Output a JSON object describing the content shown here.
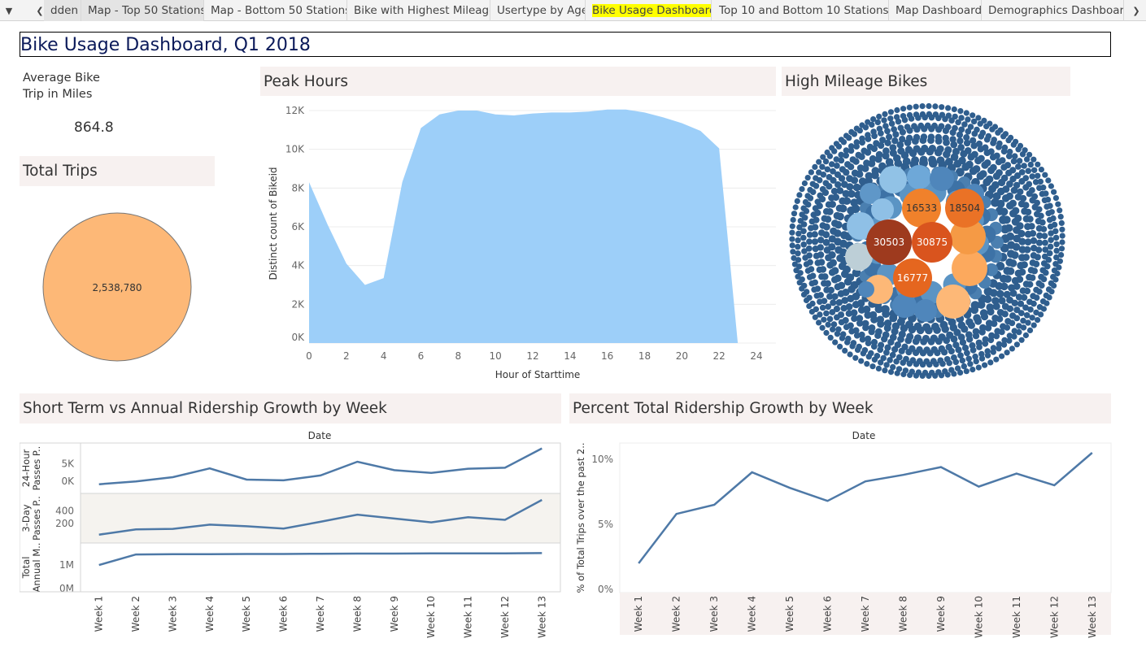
{
  "tabbar": {
    "tabs": [
      {
        "label": "dden",
        "active": false
      },
      {
        "label": "Map - Top 50 Stations",
        "active": false
      },
      {
        "label": "Map - Bottom 50 Stations",
        "active": false
      },
      {
        "label": "Bike with Highest Mileage",
        "active": false
      },
      {
        "label": "Usertype by Age",
        "active": false
      },
      {
        "label": "Bike Usage Dashboard",
        "active": true
      },
      {
        "label": "Top 10 and Bottom 10 Stations...",
        "active": false
      },
      {
        "label": "Map Dashboard",
        "active": false
      },
      {
        "label": "Demographics Dashboard",
        "active": false
      }
    ],
    "highlight_color": "#ffff00"
  },
  "dashboard": {
    "title": "Bike Usage Dashboard, Q1 2018"
  },
  "avg_trip": {
    "label": "Average Bike Trip in Miles",
    "label_line1": "Average Bike",
    "label_line2": "Trip in Miles",
    "value": "864.8"
  },
  "total_trips": {
    "title": "Total Trips",
    "value": "2,538,780",
    "color": "#fdb877"
  },
  "peak_hours": {
    "title": "Peak Hours",
    "color": "#9dcff9"
  },
  "high_mileage": {
    "title": "High Mileage Bikes",
    "labels": [
      "16533",
      "18504",
      "30503",
      "30875",
      "16777"
    ]
  },
  "short_term": {
    "title": "Short Term vs Annual Ridership Growth by Week",
    "column_header": "Date"
  },
  "percent_growth": {
    "title": "Percent Total Ridership Growth by Week",
    "column_header": "Date"
  },
  "chart_data": [
    {
      "type": "area",
      "xlabel": "Hour of Starttime",
      "ylabel": "Distinct count of Bikeid",
      "x_ticks": [
        "0",
        "2",
        "4",
        "6",
        "8",
        "10",
        "12",
        "14",
        "16",
        "18",
        "20",
        "22",
        "24"
      ],
      "y_ticks": [
        "0K",
        "2K",
        "4K",
        "6K",
        "8K",
        "10K",
        "12K"
      ],
      "xlim": [
        0,
        24
      ],
      "ylim": [
        0,
        12000
      ],
      "x": [
        0,
        1,
        2,
        3,
        4,
        5,
        6,
        7,
        8,
        9,
        10,
        11,
        12,
        13,
        14,
        15,
        16,
        17,
        18,
        19,
        20,
        21,
        22,
        23
      ],
      "values": [
        8300,
        6100,
        4100,
        3000,
        3350,
        8300,
        11100,
        11800,
        12000,
        12000,
        11800,
        11750,
        11850,
        11900,
        11900,
        11950,
        12050,
        12050,
        11900,
        11650,
        11350,
        10950,
        10050,
        0
      ],
      "color": "#9dcff9"
    },
    {
      "type": "line",
      "categories": [
        "Week 1",
        "Week 2",
        "Week 3",
        "Week 4",
        "Week 5",
        "Week 6",
        "Week 7",
        "Week 8",
        "Week 9",
        "Week 10",
        "Week 11",
        "Week 12",
        "Week 13"
      ],
      "series": [
        {
          "name": "24-Hour Passes P..",
          "values": [
            -800,
            0,
            1200,
            3700,
            500,
            300,
            1700,
            5600,
            3200,
            2400,
            3600,
            3900,
            9400
          ],
          "y_ticks": [
            "0K",
            "5K"
          ]
        },
        {
          "name": "3-Day Passes P..",
          "values": [
            30,
            110,
            120,
            185,
            160,
            125,
            230,
            340,
            280,
            220,
            300,
            260,
            570
          ],
          "y_ticks": [
            "200",
            "400"
          ]
        },
        {
          "name": "Total Annual M..",
          "values": [
            1000000,
            1450000,
            1460000,
            1460000,
            1470000,
            1470000,
            1480000,
            1490000,
            1490000,
            1500000,
            1500000,
            1500000,
            1510000
          ],
          "y_ticks": [
            "0M",
            "1M"
          ]
        }
      ],
      "color": "#4e79a7"
    },
    {
      "type": "line",
      "ylabel": "% of Total Trips over the past 2..",
      "categories": [
        "Week 1",
        "Week 2",
        "Week 3",
        "Week 4",
        "Week 5",
        "Week 6",
        "Week 7",
        "Week 8",
        "Week 9",
        "Week 10",
        "Week 11",
        "Week 12",
        "Week 13"
      ],
      "values": [
        2.0,
        5.8,
        6.5,
        9.0,
        7.8,
        6.8,
        8.3,
        8.8,
        9.4,
        7.9,
        8.9,
        8.0,
        10.5
      ],
      "y_ticks": [
        "0%",
        "5%",
        "10%"
      ],
      "ylim": [
        0,
        11
      ],
      "color": "#4e79a7"
    },
    {
      "type": "bubble",
      "labels": [
        "16533",
        "18504",
        "30503",
        "30875",
        "16777"
      ],
      "values": [
        16533,
        18504,
        30503,
        30875,
        16777
      ]
    }
  ]
}
